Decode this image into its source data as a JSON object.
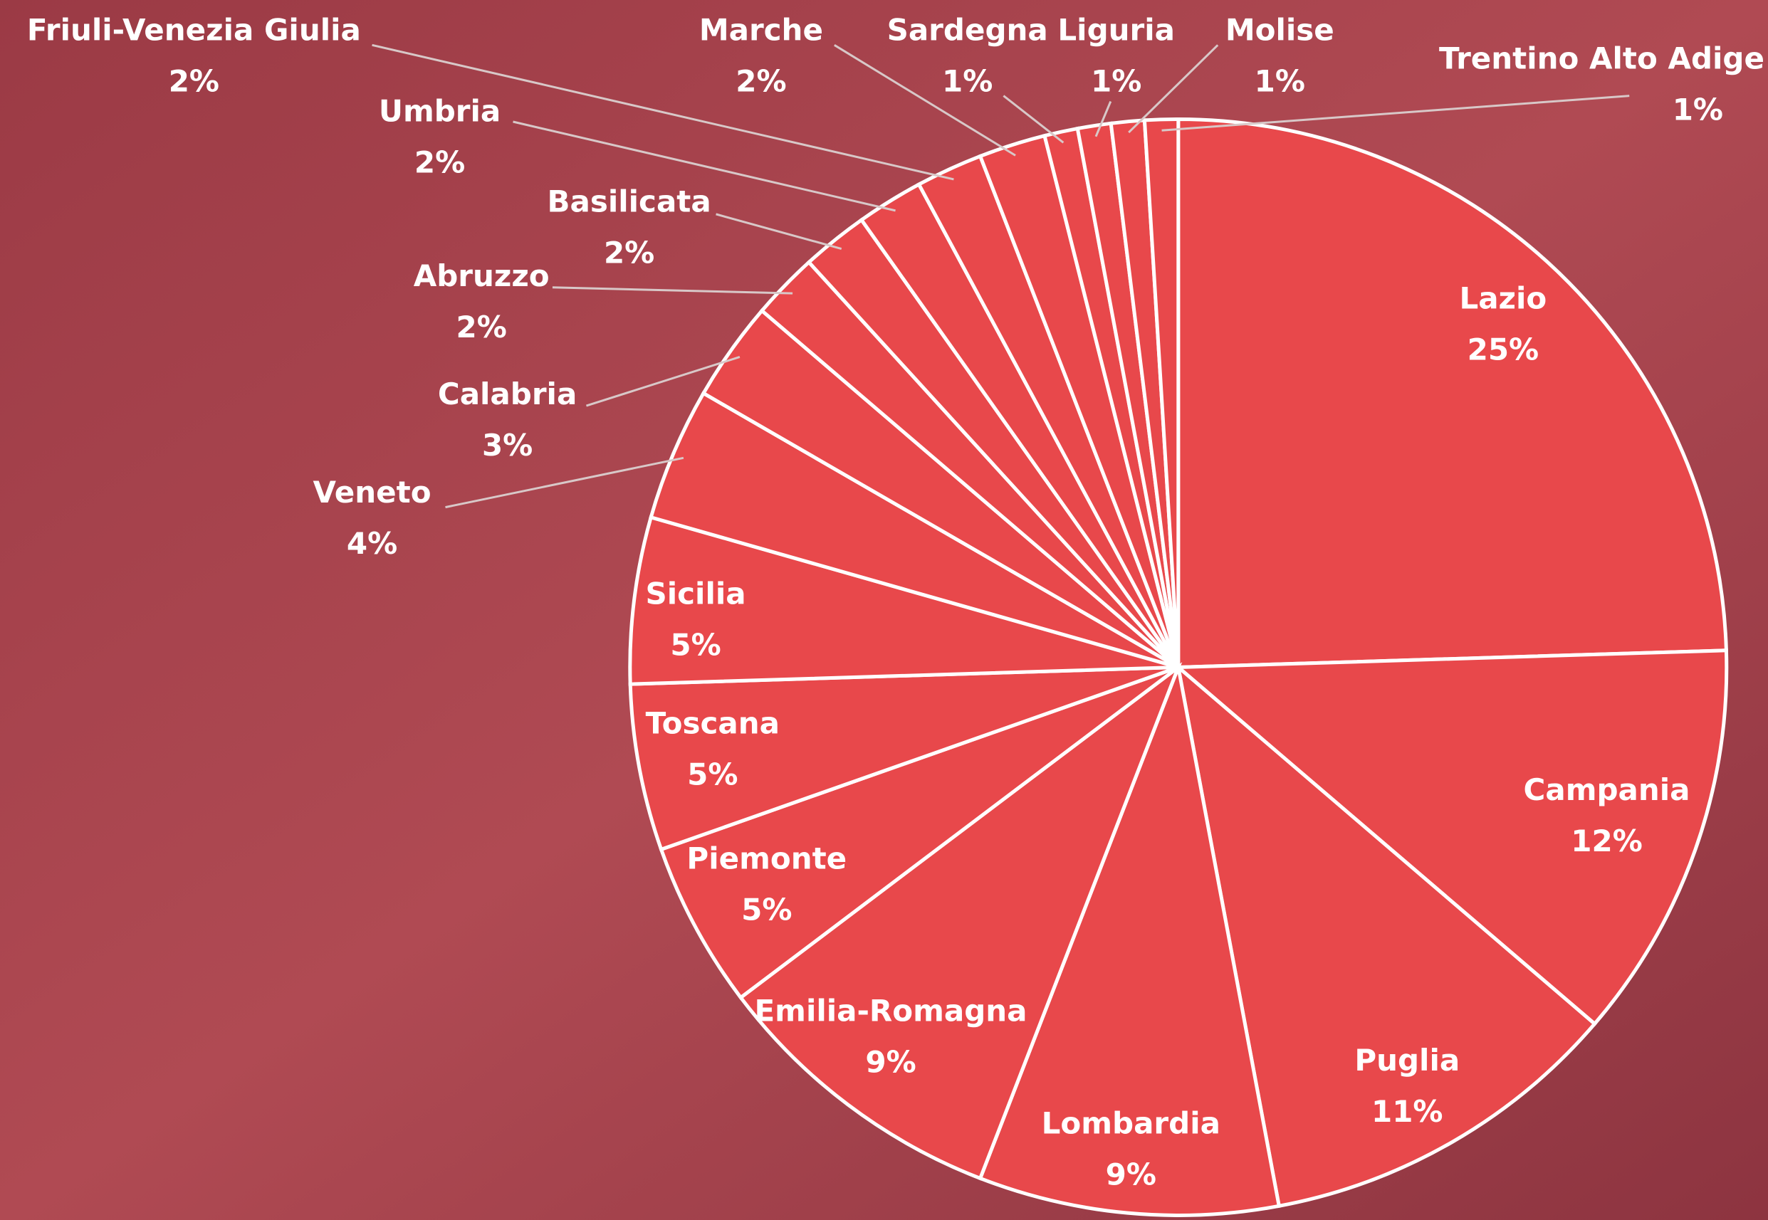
{
  "chart_data": {
    "type": "pie",
    "categories": [
      "Lazio",
      "Campania",
      "Puglia",
      "Lombardia",
      "Emilia-Romagna",
      "Piemonte",
      "Toscana",
      "Sicilia",
      "Veneto",
      "Calabria",
      "Abruzzo",
      "Basilicata",
      "Umbria",
      "Friuli-Venezia Giulia",
      "Marche",
      "Sardegna",
      "Liguria",
      "Molise",
      "Trentino Alto Adige"
    ],
    "values": [
      25,
      12,
      11,
      9,
      9,
      5,
      5,
      5,
      4,
      3,
      2,
      2,
      2,
      2,
      2,
      1,
      1,
      1,
      1
    ],
    "value_labels": [
      "25%",
      "12%",
      "11%",
      "9%",
      "9%",
      "5%",
      "5%",
      "5%",
      "4%",
      "3%",
      "2%",
      "2%",
      "2%",
      "2%",
      "2%",
      "1%",
      "1%",
      "1%",
      "1%"
    ],
    "color": "#e8484b"
  }
}
